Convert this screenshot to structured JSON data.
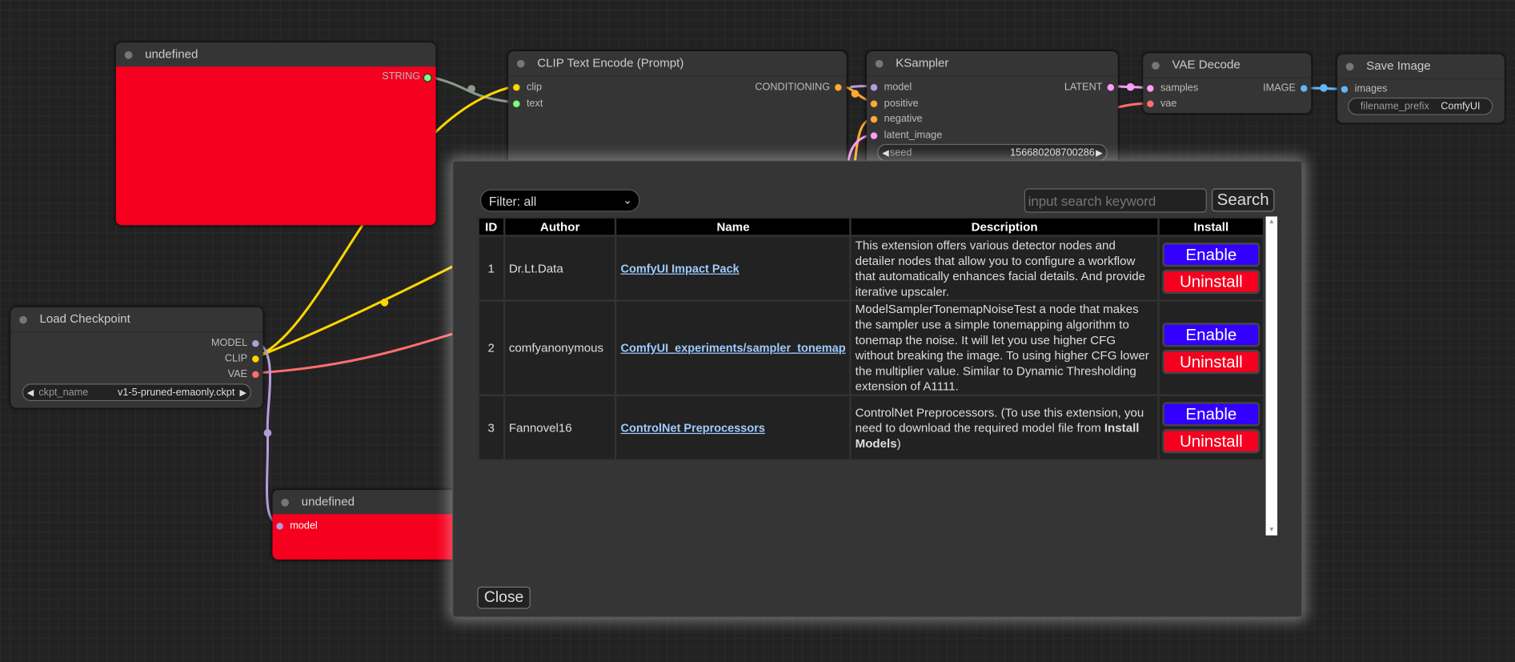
{
  "nodes": {
    "undefined_top": {
      "title": "undefined",
      "outputs": [
        "STRING"
      ]
    },
    "clip_text_encode": {
      "title": "CLIP Text Encode (Prompt)",
      "inputs": [
        "clip",
        "text"
      ],
      "outputs": [
        "CONDITIONING"
      ]
    },
    "ksampler": {
      "title": "KSampler",
      "inputs": [
        "model",
        "positive",
        "negative",
        "latent_image"
      ],
      "outputs": [
        "LATENT"
      ],
      "seed_label": "seed",
      "seed_value": "156680208700286"
    },
    "vae_decode": {
      "title": "VAE Decode",
      "inputs": [
        "samples",
        "vae"
      ],
      "outputs": [
        "IMAGE"
      ]
    },
    "save_image": {
      "title": "Save Image",
      "inputs": [
        "images"
      ],
      "widget_label": "filename_prefix",
      "widget_value": "ComfyUI"
    },
    "load_checkpoint": {
      "title": "Load Checkpoint",
      "outputs": [
        "MODEL",
        "CLIP",
        "VAE"
      ],
      "widget_label": "ckpt_name",
      "widget_value": "v1-5-pruned-emaonly.ckpt"
    },
    "undefined_bottom": {
      "title": "undefined",
      "inputs": [
        "model"
      ]
    }
  },
  "dialog": {
    "filter": "Filter: all",
    "search_placeholder": "input search keyword",
    "search_label": "Search",
    "columns": [
      "ID",
      "Author",
      "Name",
      "Description",
      "Install"
    ],
    "rows": [
      {
        "id": "1",
        "author": "Dr.Lt.Data",
        "name": "ComfyUI Impact Pack",
        "description": "This extension offers various detector nodes and detailer nodes that allow you to configure a workflow that automatically enhances facial details. And provide iterative upscaler.",
        "description_bold": "",
        "description_end": "",
        "enable": "Enable",
        "uninstall": "Uninstall"
      },
      {
        "id": "2",
        "author": "comfyanonymous",
        "name": "ComfyUI_experiments/sampler_tonemap",
        "description": "ModelSamplerTonemapNoiseTest a node that makes the sampler use a simple tonemapping algorithm to tonemap the noise. It will let you use higher CFG without breaking the image. To using higher CFG lower the multiplier value. Similar to Dynamic Thresholding extension of A1111.",
        "description_bold": "",
        "description_end": "",
        "enable": "Enable",
        "uninstall": "Uninstall"
      },
      {
        "id": "3",
        "author": "Fannovel16",
        "name": "ControlNet Preprocessors",
        "description": "ControlNet Preprocessors. (To use this extension, you need to download the required model file from ",
        "description_bold": "Install Models",
        "description_end": ")",
        "enable": "Enable",
        "uninstall": "Uninstall"
      }
    ],
    "close_label": "Close"
  },
  "colors": {
    "enable": "#3300ff",
    "uninstall": "#f5001e",
    "node_body_red": "#f5001e",
    "link": "#9ecbff"
  }
}
